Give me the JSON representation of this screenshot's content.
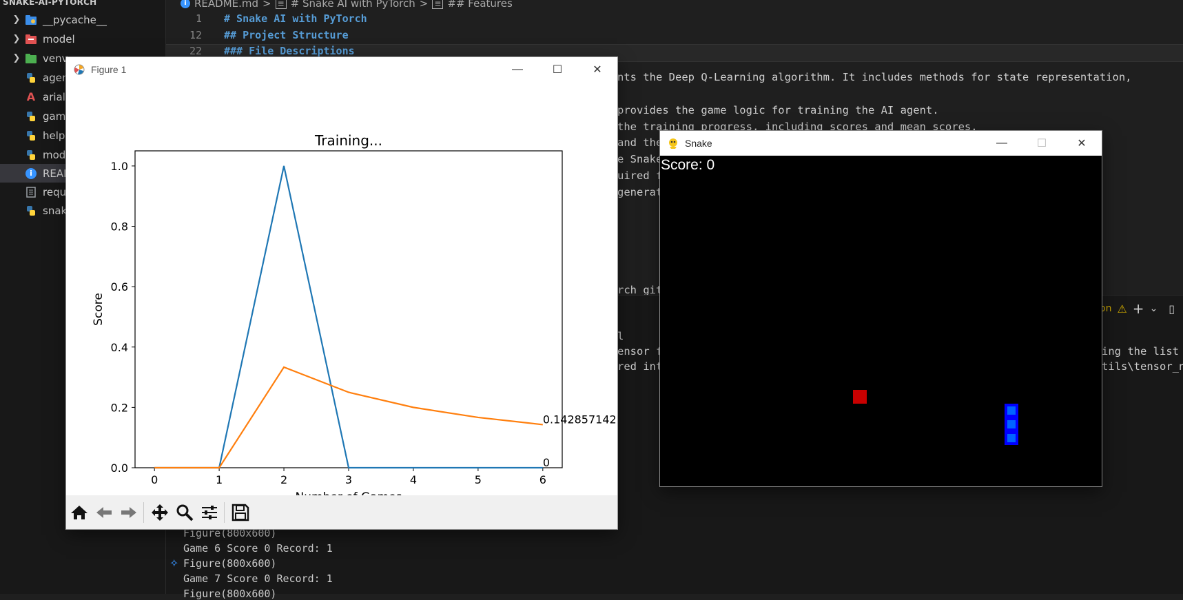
{
  "explorer": {
    "root_label": "SNAKE-AI-PYTORCH",
    "items": [
      {
        "label": "__pycache__",
        "kind": "folder",
        "icon": "python-folder-icon"
      },
      {
        "label": "model",
        "kind": "folder",
        "icon": "folder-icon"
      },
      {
        "label": "venv",
        "kind": "folder",
        "icon": "folder-icon"
      },
      {
        "label": "agen",
        "kind": "file",
        "icon": "python-icon"
      },
      {
        "label": "arial.",
        "kind": "file",
        "icon": "font-icon"
      },
      {
        "label": "gam",
        "kind": "file",
        "icon": "python-icon"
      },
      {
        "label": "helpe",
        "kind": "file",
        "icon": "python-icon"
      },
      {
        "label": "mod",
        "kind": "file",
        "icon": "python-icon"
      },
      {
        "label": "READ",
        "kind": "file",
        "icon": "info-icon"
      },
      {
        "label": "requ",
        "kind": "file",
        "icon": "text-file-icon"
      },
      {
        "label": "snak",
        "kind": "file",
        "icon": "python-icon"
      }
    ]
  },
  "editor": {
    "breadcrumb": [
      "README.md",
      "# Snake AI with PyTorch",
      "## Features"
    ],
    "lines": [
      {
        "num": "1",
        "text": "# Snake AI with PyTorch"
      },
      {
        "num": "12",
        "text": "## Project Structure"
      },
      {
        "num": "22",
        "text": "### File Descriptions"
      }
    ],
    "partial_text": [
      "nts the Deep Q-Learning algorithm. It includes methods for state representation,",
      "provides the game logic for training the AI agent.",
      "the training progress, including scores and mean scores.",
      "and the",
      "e Snake",
      "uired f",
      "generat",
      "rch git",
      "l",
      "ensor f",
      "red int",
      "ing the list f",
      "tils\\tensor_n"
    ]
  },
  "terminal": {
    "lines": [
      "Figure(800x600)",
      "Game 6 Score 0 Record: 1",
      "Figure(800x600)",
      "Game 7 Score 0 Record: 1",
      "Figure(800x600)"
    ],
    "toolbar_label": "on"
  },
  "figure_window": {
    "title": "Figure 1",
    "toolbar": [
      "home",
      "back",
      "forward",
      "pan",
      "zoom",
      "configure-subplots",
      "save"
    ]
  },
  "chart_data": {
    "type": "line",
    "title": "Training...",
    "xlabel": "Number of Games",
    "ylabel": "Score",
    "x": [
      0,
      1,
      2,
      3,
      4,
      5,
      6
    ],
    "xlim": [
      -0.3,
      6.3
    ],
    "ylim": [
      0,
      1.05
    ],
    "xticks": [
      "0",
      "1",
      "2",
      "3",
      "4",
      "5",
      "6"
    ],
    "yticks": [
      "0.0",
      "0.2",
      "0.4",
      "0.6",
      "0.8",
      "1.0"
    ],
    "series": [
      {
        "name": "",
        "color": "#1f77b4",
        "values": [
          0,
          0,
          1,
          0,
          0,
          0,
          0
        ],
        "end_label": "0"
      },
      {
        "name": "",
        "color": "#ff7f0e",
        "values": [
          0,
          0,
          0.3333,
          0.25,
          0.2,
          0.1667,
          0.142857142
        ],
        "end_label": "0.142857142"
      }
    ],
    "grid": false
  },
  "snake_window": {
    "title": "Snake",
    "score_text": "Score: 0",
    "food_color": "#c80000",
    "snake_outer_color": "#0000ff",
    "snake_inner_color": "#0064ff"
  }
}
